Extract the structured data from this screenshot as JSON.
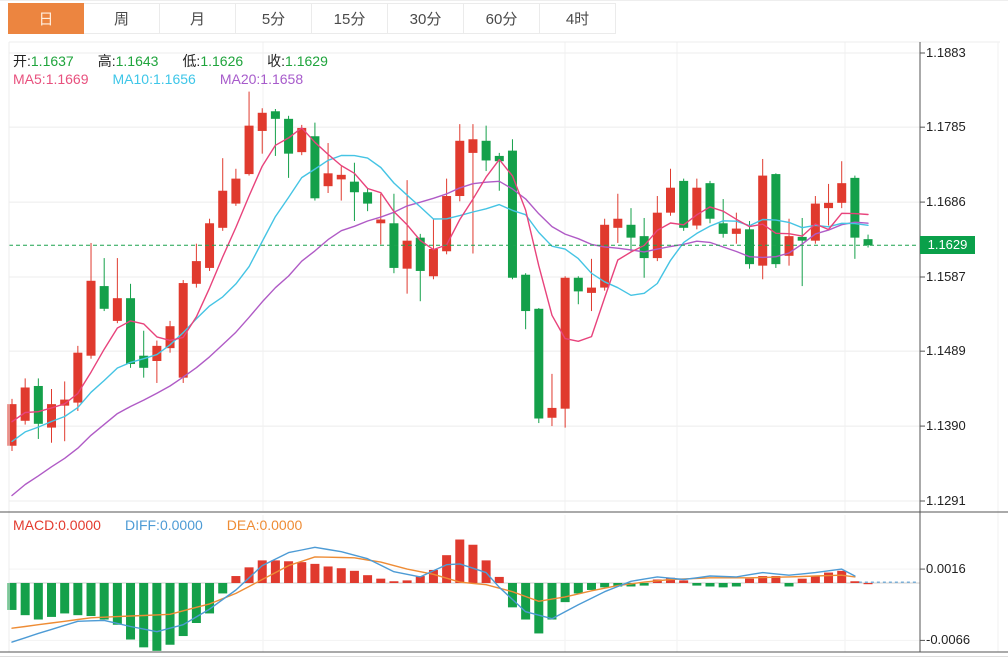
{
  "tabs": [
    {
      "id": "day",
      "label": "日",
      "active": true
    },
    {
      "id": "week",
      "label": "周",
      "active": false
    },
    {
      "id": "month",
      "label": "月",
      "active": false
    },
    {
      "id": "5min",
      "label": "5分",
      "active": false
    },
    {
      "id": "15min",
      "label": "15分",
      "active": false
    },
    {
      "id": "30min",
      "label": "30分",
      "active": false
    },
    {
      "id": "60min",
      "label": "60分",
      "active": false
    },
    {
      "id": "4hour",
      "label": "4时",
      "active": false
    }
  ],
  "legend": {
    "ohlc": [
      {
        "label": "开:",
        "value": "1.1637"
      },
      {
        "label": "高:",
        "value": "1.1643"
      },
      {
        "label": "低:",
        "value": "1.1626"
      },
      {
        "label": "收:",
        "value": "1.1629"
      }
    ],
    "ohlc_value_color": "#1fa43c",
    "ma": [
      {
        "label": "MA5:",
        "value": "1.1669",
        "color": "#e8517e"
      },
      {
        "label": "MA10:",
        "value": "1.1656",
        "color": "#3ec6e8"
      },
      {
        "label": "MA20:",
        "value": "1.1658",
        "color": "#a75bcb"
      }
    ]
  },
  "macd_panel": {
    "legend": [
      {
        "label": "MACD:",
        "value": "0.0000",
        "color": "#e33b2f"
      },
      {
        "label": "DIFF:",
        "value": "0.0000",
        "color": "#4d9bd5"
      },
      {
        "label": "DEA:",
        "value": "0.0000",
        "color": "#ee8c35"
      }
    ],
    "y_ticks": [
      {
        "label": "0.0016",
        "value": 0.0016
      },
      {
        "label": "-0.0066",
        "value": -0.0066
      }
    ]
  },
  "colors": {
    "up": "#e03a2e",
    "down": "#14a04a",
    "ma5": "#e8437c",
    "ma10": "#45c4e4",
    "ma20": "#b05bc6",
    "diff": "#4d9bd5",
    "dea": "#ee8c35",
    "price_line": "#1ca24e",
    "badge_bg": "#0aa04a",
    "tab_orange": "#ec8540",
    "grid": "#ececec",
    "axis": "#555555"
  },
  "chart_data": {
    "type": "candlestick",
    "title": "",
    "legend_position": "top-left",
    "grid": true,
    "price_axis": {
      "ticks": [
        "1.1883",
        "1.1785",
        "1.1686",
        "1.1587",
        "1.1489",
        "1.1390",
        "1.1291"
      ],
      "current_price_label": "1.1629",
      "current_price": 1.1629,
      "ylim": [
        1.1278,
        1.1912
      ]
    },
    "candles_ohlc": [
      [
        1.1364,
        1.1426,
        1.1357,
        1.1419
      ],
      [
        1.1397,
        1.1453,
        1.1392,
        1.1441
      ],
      [
        1.1443,
        1.1453,
        1.1373,
        1.1393
      ],
      [
        1.1388,
        1.1439,
        1.1368,
        1.1419
      ],
      [
        1.1417,
        1.1449,
        1.137,
        1.1425
      ],
      [
        1.1421,
        1.1496,
        1.141,
        1.1487
      ],
      [
        1.1483,
        1.1632,
        1.1479,
        1.1582
      ],
      [
        1.1575,
        1.1612,
        1.1542,
        1.1545
      ],
      [
        1.1529,
        1.1612,
        1.1526,
        1.1559
      ],
      [
        1.1559,
        1.1578,
        1.1467,
        1.1472
      ],
      [
        1.1483,
        1.1516,
        1.1454,
        1.1467
      ],
      [
        1.1476,
        1.1503,
        1.1447,
        1.1496
      ],
      [
        1.1493,
        1.1529,
        1.1487,
        1.1522
      ],
      [
        1.1454,
        1.1583,
        1.1447,
        1.1579
      ],
      [
        1.1578,
        1.1631,
        1.1573,
        1.1608
      ],
      [
        1.1599,
        1.1664,
        1.1595,
        1.1658
      ],
      [
        1.1652,
        1.1744,
        1.1648,
        1.1701
      ],
      [
        1.1684,
        1.173,
        1.1681,
        1.1717
      ],
      [
        1.1723,
        1.1832,
        1.1721,
        1.1787
      ],
      [
        1.178,
        1.181,
        1.175,
        1.1804
      ],
      [
        1.1806,
        1.1809,
        1.1747,
        1.1796
      ],
      [
        1.1796,
        1.18,
        1.1718,
        1.175
      ],
      [
        1.1752,
        1.1788,
        1.1748,
        1.1784
      ],
      [
        1.1773,
        1.1791,
        1.1688,
        1.1691
      ],
      [
        1.1707,
        1.1764,
        1.1698,
        1.1724
      ],
      [
        1.1716,
        1.1733,
        1.1688,
        1.1722
      ],
      [
        1.1713,
        1.1738,
        1.1661,
        1.1699
      ],
      [
        1.1699,
        1.1704,
        1.1674,
        1.1684
      ],
      [
        1.1658,
        1.1697,
        1.163,
        1.1663
      ],
      [
        1.1658,
        1.1697,
        1.1592,
        1.1599
      ],
      [
        1.1598,
        1.1715,
        1.1565,
        1.1635
      ],
      [
        1.1639,
        1.1644,
        1.1555,
        1.1595
      ],
      [
        1.1588,
        1.1664,
        1.1584,
        1.1624
      ],
      [
        1.1621,
        1.1717,
        1.1617,
        1.1694
      ],
      [
        1.1694,
        1.1789,
        1.1687,
        1.1767
      ],
      [
        1.1751,
        1.1789,
        1.1618,
        1.1769
      ],
      [
        1.1767,
        1.1787,
        1.1727,
        1.1741
      ],
      [
        1.1747,
        1.1751,
        1.1701,
        1.174
      ],
      [
        1.1754,
        1.1769,
        1.1584,
        1.1586
      ],
      [
        1.159,
        1.1592,
        1.1518,
        1.1542
      ],
      [
        1.1545,
        1.1546,
        1.1394,
        1.14
      ],
      [
        1.1401,
        1.1459,
        1.139,
        1.1414
      ],
      [
        1.1413,
        1.1588,
        1.1388,
        1.1586
      ],
      [
        1.1586,
        1.1588,
        1.1551,
        1.1568
      ],
      [
        1.1566,
        1.1611,
        1.1542,
        1.1573
      ],
      [
        1.1573,
        1.1664,
        1.1569,
        1.1656
      ],
      [
        1.1652,
        1.1697,
        1.1632,
        1.1664
      ],
      [
        1.1656,
        1.1678,
        1.1621,
        1.1639
      ],
      [
        1.1641,
        1.1665,
        1.1586,
        1.1612
      ],
      [
        1.1612,
        1.1694,
        1.1608,
        1.1672
      ],
      [
        1.1672,
        1.173,
        1.1668,
        1.1705
      ],
      [
        1.1714,
        1.1717,
        1.1648,
        1.1652
      ],
      [
        1.1655,
        1.1717,
        1.165,
        1.1705
      ],
      [
        1.1711,
        1.1714,
        1.1658,
        1.1664
      ],
      [
        1.1658,
        1.169,
        1.1639,
        1.1644
      ],
      [
        1.1644,
        1.1672,
        1.1631,
        1.1651
      ],
      [
        1.165,
        1.1661,
        1.1598,
        1.1604
      ],
      [
        1.1602,
        1.1743,
        1.1584,
        1.1721
      ],
      [
        1.1723,
        1.1724,
        1.1599,
        1.1604
      ],
      [
        1.1615,
        1.1664,
        1.1602,
        1.1641
      ],
      [
        1.164,
        1.1665,
        1.1575,
        1.1635
      ],
      [
        1.1635,
        1.1694,
        1.1631,
        1.1684
      ],
      [
        1.1678,
        1.171,
        1.1655,
        1.1685
      ],
      [
        1.1685,
        1.174,
        1.1678,
        1.1711
      ],
      [
        1.1718,
        1.1721,
        1.1611,
        1.1639
      ],
      [
        1.1637,
        1.1643,
        1.1626,
        1.1629
      ]
    ],
    "ma_periods": [
      5,
      10,
      20
    ],
    "prehistory_closes_for_ma": [
      1.115,
      1.1165,
      1.118,
      1.12,
      1.122,
      1.124,
      1.1258,
      1.1272,
      1.1285,
      1.1298,
      1.1315,
      1.133,
      1.1345,
      1.1358,
      1.137,
      1.138,
      1.1388,
      1.1394,
      1.1398
    ],
    "macd": {
      "hist": [
        -0.0031,
        -0.0037,
        -0.0042,
        -0.0039,
        -0.0035,
        -0.0037,
        -0.0038,
        -0.0042,
        -0.0048,
        -0.0065,
        -0.0074,
        -0.0078,
        -0.0071,
        -0.0061,
        -0.0046,
        -0.0035,
        -0.0012,
        0.0008,
        0.0018,
        0.0026,
        0.0026,
        0.0025,
        0.0024,
        0.0022,
        0.0019,
        0.0017,
        0.0014,
        0.0009,
        0.0005,
        0.0002,
        0.0003,
        0.0008,
        0.0015,
        0.0032,
        0.005,
        0.0044,
        0.0026,
        0.0007,
        -0.0028,
        -0.0042,
        -0.0058,
        -0.0042,
        -0.0022,
        -0.0012,
        -0.0008,
        -0.0005,
        -0.0004,
        -0.0004,
        -0.0003,
        0.0004,
        0.0006,
        0.0003,
        -0.0003,
        -0.0004,
        -0.0005,
        -0.0004,
        0.0005,
        0.0008,
        0.0008,
        -0.0004,
        0.0005,
        0.0008,
        0.0012,
        0.0014,
        0.0002,
        0.0
      ],
      "diff_keypoints": [
        [
          0,
          -0.0068
        ],
        [
          2,
          -0.0058
        ],
        [
          5,
          -0.0044
        ],
        [
          7,
          -0.0043
        ],
        [
          9,
          -0.005
        ],
        [
          11,
          -0.0056
        ],
        [
          13,
          -0.0048
        ],
        [
          15,
          -0.003
        ],
        [
          17,
          -0.0008
        ],
        [
          19,
          0.002
        ],
        [
          21,
          0.0035
        ],
        [
          23,
          0.0041
        ],
        [
          25,
          0.0036
        ],
        [
          27,
          0.0028
        ],
        [
          29,
          0.0013
        ],
        [
          31,
          0.0007
        ],
        [
          33,
          0.0021
        ],
        [
          34,
          0.0022
        ],
        [
          36,
          0.0012
        ],
        [
          37,
          -0.0005
        ],
        [
          39,
          -0.0033
        ],
        [
          41,
          -0.0041
        ],
        [
          43,
          -0.0025
        ],
        [
          45,
          -0.001
        ],
        [
          47,
          0.0002
        ],
        [
          49,
          0.0007
        ],
        [
          51,
          0.0004
        ],
        [
          53,
          0.0008
        ],
        [
          55,
          0.0007
        ],
        [
          57,
          0.0012
        ],
        [
          59,
          0.0009
        ],
        [
          61,
          0.0012
        ],
        [
          63,
          0.0016
        ],
        [
          64,
          0.0008
        ],
        [
          65,
          0.0001
        ]
      ],
      "dea_keypoints": [
        [
          0,
          -0.0052
        ],
        [
          3,
          -0.0046
        ],
        [
          6,
          -0.004
        ],
        [
          9,
          -0.0038
        ],
        [
          12,
          -0.0036
        ],
        [
          15,
          -0.0024
        ],
        [
          17,
          -0.0012
        ],
        [
          19,
          0.0004
        ],
        [
          21,
          0.002
        ],
        [
          23,
          0.003
        ],
        [
          26,
          0.0029
        ],
        [
          28,
          0.0024
        ],
        [
          30,
          0.0016
        ],
        [
          32,
          0.001
        ],
        [
          34,
          0.0001
        ],
        [
          36,
          -0.0002
        ],
        [
          38,
          -0.001
        ],
        [
          40,
          -0.0021
        ],
        [
          42,
          -0.0016
        ],
        [
          44,
          -0.0009
        ],
        [
          46,
          -0.0003
        ],
        [
          48,
          0.0001
        ],
        [
          50,
          0.0004
        ],
        [
          53,
          0.0006
        ],
        [
          56,
          0.0006
        ],
        [
          59,
          0.0007
        ],
        [
          61,
          0.0008
        ],
        [
          63,
          0.0009
        ],
        [
          64,
          0.0007
        ],
        [
          65,
          0.0001
        ]
      ]
    }
  }
}
